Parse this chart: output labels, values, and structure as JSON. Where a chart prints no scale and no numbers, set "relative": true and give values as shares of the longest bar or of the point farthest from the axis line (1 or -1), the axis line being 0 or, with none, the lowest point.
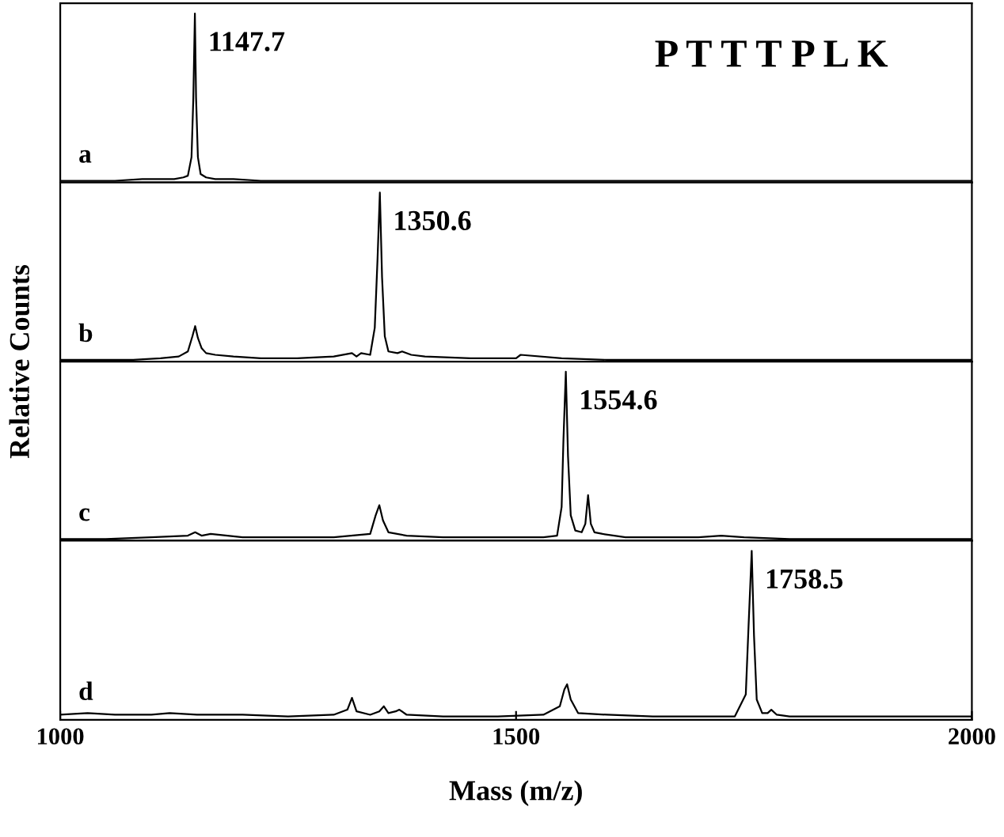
{
  "chart_data": [
    {
      "type": "line",
      "relative": true,
      "xlim": [
        1000,
        2000
      ],
      "tick_labels": false,
      "ylabel": "Relative Counts",
      "annotations": [
        "a",
        "P T T T P L K",
        {
          "text": "1147.7",
          "x": 1147.7,
          "y": 1
        }
      ],
      "series": [
        {
          "color": "#000000",
          "x": [
            1000,
            1030,
            1060,
            1090,
            1110,
            1125,
            1135,
            1140,
            1144,
            1146,
            1147.7,
            1149,
            1151,
            1154,
            1160,
            1170,
            1190,
            1220,
            1260,
            1300,
            1350,
            1400,
            1450,
            1500,
            1550,
            1600,
            1650,
            1700,
            1750,
            1800,
            1850,
            1900,
            1950,
            2000
          ],
          "values": [
            0.01,
            0.01,
            0.01,
            0.02,
            0.02,
            0.02,
            0.03,
            0.04,
            0.15,
            0.5,
            1,
            0.5,
            0.15,
            0.05,
            0.03,
            0.02,
            0.02,
            0.01,
            0.01,
            0.01,
            0.01,
            0.01,
            0.01,
            0.01,
            0.01,
            0.01,
            0.01,
            0.01,
            0.01,
            0.01,
            0.01,
            0.01,
            0.01,
            0.01
          ]
        }
      ]
    },
    {
      "type": "line",
      "relative": true,
      "xlim": [
        1000,
        2000
      ],
      "tick_labels": false,
      "annotations": [
        "b",
        {
          "text": "1350.6",
          "x": 1350.6,
          "y": 1
        }
      ],
      "series": [
        {
          "color": "#000000",
          "x": [
            1000,
            1040,
            1080,
            1110,
            1130,
            1140,
            1145,
            1148,
            1151,
            1155,
            1160,
            1170,
            1190,
            1220,
            1260,
            1300,
            1320,
            1325,
            1330,
            1340,
            1345,
            1348,
            1350.6,
            1353,
            1356,
            1360,
            1370,
            1375,
            1385,
            1400,
            1450,
            1500,
            1505,
            1550,
            1600,
            1650,
            1700,
            1750,
            1800,
            1850,
            1900,
            1950,
            2000
          ],
          "values": [
            0.01,
            0.01,
            0.01,
            0.02,
            0.03,
            0.06,
            0.15,
            0.21,
            0.14,
            0.08,
            0.05,
            0.04,
            0.03,
            0.02,
            0.02,
            0.03,
            0.05,
            0.03,
            0.05,
            0.04,
            0.2,
            0.6,
            1,
            0.5,
            0.15,
            0.06,
            0.05,
            0.06,
            0.04,
            0.03,
            0.02,
            0.02,
            0.04,
            0.02,
            0.01,
            0.01,
            0.01,
            0.01,
            0.01,
            0.01,
            0.01,
            0.01,
            0.01
          ]
        }
      ]
    },
    {
      "type": "line",
      "relative": true,
      "xlim": [
        1000,
        2000
      ],
      "tick_labels": false,
      "annotations": [
        "c",
        {
          "text": "1554.6",
          "x": 1554.6,
          "y": 1
        }
      ],
      "series": [
        {
          "color": "#000000",
          "x": [
            1000,
            1050,
            1100,
            1140,
            1148,
            1155,
            1165,
            1200,
            1250,
            1300,
            1340,
            1346,
            1350,
            1354,
            1360,
            1380,
            1420,
            1460,
            1500,
            1530,
            1545,
            1550,
            1552,
            1554.6,
            1557,
            1560,
            1565,
            1572,
            1576,
            1579,
            1582,
            1586,
            1595,
            1620,
            1660,
            1700,
            1725,
            1750,
            1800,
            1850,
            1900,
            1950,
            2000
          ],
          "values": [
            0.01,
            0.01,
            0.02,
            0.03,
            0.05,
            0.03,
            0.04,
            0.02,
            0.02,
            0.02,
            0.04,
            0.15,
            0.21,
            0.12,
            0.05,
            0.03,
            0.02,
            0.02,
            0.02,
            0.02,
            0.03,
            0.2,
            0.6,
            1,
            0.5,
            0.15,
            0.06,
            0.05,
            0.1,
            0.27,
            0.1,
            0.05,
            0.04,
            0.02,
            0.02,
            0.02,
            0.03,
            0.02,
            0.01,
            0.01,
            0.01,
            0.01,
            0.01
          ]
        }
      ]
    },
    {
      "type": "line",
      "relative": true,
      "xlim": [
        1000,
        2000
      ],
      "xticks": [
        1000,
        1500,
        2000
      ],
      "xlabel": "Mass (m/z)",
      "annotations": [
        "d",
        {
          "text": "1758.5",
          "x": 1758.5,
          "y": 1
        }
      ],
      "series": [
        {
          "color": "#000000",
          "x": [
            1000,
            1030,
            1060,
            1100,
            1120,
            1150,
            1200,
            1250,
            1300,
            1315,
            1320,
            1325,
            1340,
            1350,
            1355,
            1360,
            1368,
            1372,
            1380,
            1420,
            1480,
            1530,
            1548,
            1553,
            1556,
            1560,
            1568,
            1600,
            1650,
            1700,
            1740,
            1752,
            1755,
            1758.5,
            1761,
            1764,
            1770,
            1776,
            1780,
            1786,
            1800,
            1850,
            1900,
            1950,
            2000
          ],
          "values": [
            0.03,
            0.04,
            0.03,
            0.03,
            0.04,
            0.03,
            0.03,
            0.02,
            0.03,
            0.06,
            0.13,
            0.05,
            0.03,
            0.05,
            0.08,
            0.04,
            0.05,
            0.06,
            0.03,
            0.02,
            0.02,
            0.03,
            0.08,
            0.18,
            0.21,
            0.12,
            0.04,
            0.03,
            0.02,
            0.02,
            0.02,
            0.15,
            0.55,
            1,
            0.5,
            0.12,
            0.04,
            0.04,
            0.06,
            0.03,
            0.02,
            0.02,
            0.02,
            0.02,
            0.02
          ]
        }
      ]
    }
  ]
}
